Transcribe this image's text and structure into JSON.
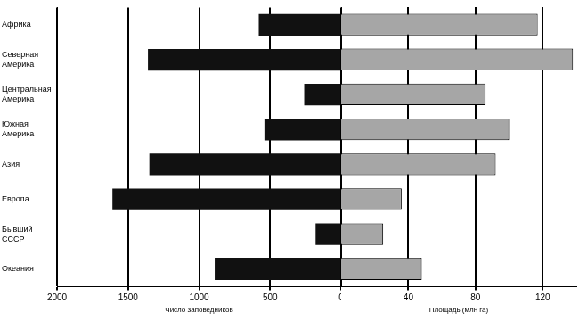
{
  "chart_data": [
    {
      "type": "bar",
      "orientation": "horizontal",
      "categories": [
        "Африка",
        "Северная Америка",
        "Центральная Америка",
        "Южная Америка",
        "Азия",
        "Европа",
        "Бывший СССР",
        "Океания"
      ],
      "values": [
        580,
        1360,
        260,
        540,
        1350,
        1610,
        180,
        890
      ],
      "color": "#111111",
      "xlabel": "Число заповедников",
      "xlim": [
        2000,
        0
      ],
      "xticks": [
        0,
        500,
        1000,
        1500,
        2000
      ],
      "grid": true
    },
    {
      "type": "bar",
      "orientation": "horizontal",
      "categories": [
        "Африка",
        "Северная Америка",
        "Центральная Америка",
        "Южная Америка",
        "Азия",
        "Европа",
        "Бывший СССР",
        "Океания"
      ],
      "values": [
        117,
        138,
        86,
        100,
        92,
        36,
        25,
        48
      ],
      "color": "#a6a6a6",
      "xlabel": "Площадь (млн га)",
      "xlim": [
        0,
        140
      ],
      "xticks": [
        40,
        80,
        120
      ],
      "grid": true,
      "tick_labels": "x"
    }
  ]
}
